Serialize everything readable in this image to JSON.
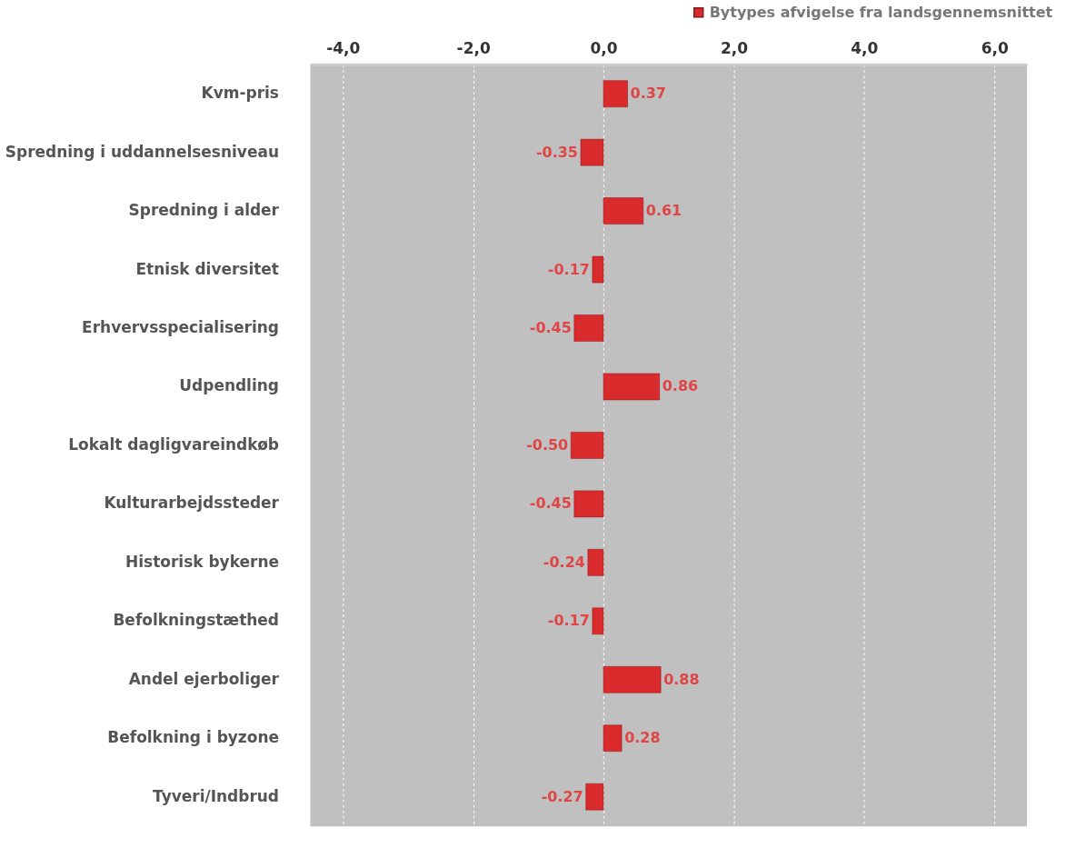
{
  "chart_data": {
    "type": "bar",
    "orientation": "horizontal",
    "categories": [
      "Kvm-pris",
      "Spredning i uddannelsesniveau",
      "Spredning i alder",
      "Etnisk diversitet",
      "Erhvervsspecialisering",
      "Udpendling",
      "Lokalt dagligvareindkøb",
      "Kulturarbejdssteder",
      "Historisk bykerne",
      "Befolkningstæthed",
      "Andel ejerboliger",
      "Befolkning i byzone",
      "Tyveri/Indbrud"
    ],
    "series": [
      {
        "name": "Bytypes afvigelse fra landsgennemsnittet",
        "color": "#d92b2b",
        "values": [
          0.37,
          -0.35,
          0.61,
          -0.17,
          -0.45,
          0.86,
          -0.5,
          -0.45,
          -0.24,
          -0.17,
          0.88,
          0.28,
          -0.27
        ],
        "value_labels": [
          "0.37",
          "-0.35",
          "0.61",
          "-0.17",
          "-0.45",
          "0.86",
          "-0.50",
          "-0.45",
          "-0.24",
          "-0.17",
          "0.88",
          "0.28",
          "-0.27"
        ]
      }
    ],
    "xlim": [
      -4.5,
      6.5
    ],
    "xticks": [
      {
        "value": -4,
        "label": "-4,0"
      },
      {
        "value": -2,
        "label": "-2,0"
      },
      {
        "value": 0,
        "label": "0,0"
      },
      {
        "value": 2,
        "label": "2,0"
      },
      {
        "value": 4,
        "label": "4,0"
      },
      {
        "value": 6,
        "label": "6,0"
      }
    ],
    "grid": "x",
    "legend": "top right"
  }
}
